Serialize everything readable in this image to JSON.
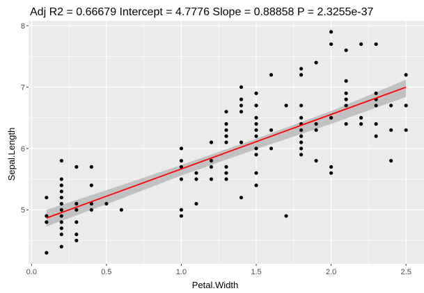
{
  "chart_data": {
    "type": "scatter",
    "title": "Adj R2 =  0.66679 Intercept = 4.7776  Slope = 0.88858  P = 2.3255e-37",
    "xlabel": "Petal.Width",
    "ylabel": "Sepal.Length",
    "xlim": [
      -0.02,
      2.62
    ],
    "ylim": [
      4.12,
      8.08
    ],
    "x_ticks": [
      0.0,
      0.5,
      1.0,
      1.5,
      2.0,
      2.5
    ],
    "x_tick_labels": [
      "0.0",
      "0.5",
      "1.0",
      "1.5",
      "2.0",
      "2.5"
    ],
    "y_ticks": [
      5,
      6,
      7,
      8
    ],
    "y_tick_labels": [
      "5",
      "6",
      "7",
      "8"
    ],
    "grid": true,
    "background_color": "#ebebeb",
    "point_color": "#000000",
    "fit": {
      "method": "linear",
      "intercept": 4.7776,
      "slope": 0.88858,
      "line_color": "#ff0000",
      "band_color": "#b3b3b3",
      "band": [
        {
          "x": 0.1,
          "lower": 4.73,
          "upper": 5.0
        },
        {
          "x": 0.5,
          "lower": 5.09,
          "upper": 5.32
        },
        {
          "x": 1.0,
          "lower": 5.56,
          "upper": 5.73
        },
        {
          "x": 1.5,
          "lower": 5.99,
          "upper": 6.16
        },
        {
          "x": 2.0,
          "lower": 6.4,
          "upper": 6.61
        },
        {
          "x": 2.5,
          "lower": 6.84,
          "upper": 7.12
        }
      ]
    },
    "points": [
      {
        "x": 0.1,
        "y": 4.3
      },
      {
        "x": 0.1,
        "y": 4.8
      },
      {
        "x": 0.1,
        "y": 4.9
      },
      {
        "x": 0.1,
        "y": 5.2
      },
      {
        "x": 0.2,
        "y": 4.4
      },
      {
        "x": 0.2,
        "y": 4.6
      },
      {
        "x": 0.2,
        "y": 4.7
      },
      {
        "x": 0.2,
        "y": 4.8
      },
      {
        "x": 0.2,
        "y": 4.9
      },
      {
        "x": 0.2,
        "y": 5.0
      },
      {
        "x": 0.2,
        "y": 5.1
      },
      {
        "x": 0.2,
        "y": 5.2
      },
      {
        "x": 0.2,
        "y": 5.3
      },
      {
        "x": 0.2,
        "y": 5.4
      },
      {
        "x": 0.2,
        "y": 5.5
      },
      {
        "x": 0.2,
        "y": 5.8
      },
      {
        "x": 0.3,
        "y": 4.5
      },
      {
        "x": 0.3,
        "y": 4.6
      },
      {
        "x": 0.3,
        "y": 4.8
      },
      {
        "x": 0.3,
        "y": 5.0
      },
      {
        "x": 0.3,
        "y": 5.1
      },
      {
        "x": 0.3,
        "y": 5.7
      },
      {
        "x": 0.4,
        "y": 5.0
      },
      {
        "x": 0.4,
        "y": 5.1
      },
      {
        "x": 0.4,
        "y": 5.4
      },
      {
        "x": 0.4,
        "y": 5.7
      },
      {
        "x": 0.5,
        "y": 5.1
      },
      {
        "x": 0.6,
        "y": 5.0
      },
      {
        "x": 1.0,
        "y": 4.9
      },
      {
        "x": 1.0,
        "y": 5.0
      },
      {
        "x": 1.0,
        "y": 5.5
      },
      {
        "x": 1.0,
        "y": 5.7
      },
      {
        "x": 1.0,
        "y": 5.8
      },
      {
        "x": 1.0,
        "y": 6.0
      },
      {
        "x": 1.1,
        "y": 5.1
      },
      {
        "x": 1.1,
        "y": 5.5
      },
      {
        "x": 1.1,
        "y": 5.6
      },
      {
        "x": 1.2,
        "y": 5.5
      },
      {
        "x": 1.2,
        "y": 5.7
      },
      {
        "x": 1.2,
        "y": 5.8
      },
      {
        "x": 1.2,
        "y": 6.1
      },
      {
        "x": 1.3,
        "y": 5.5
      },
      {
        "x": 1.3,
        "y": 5.6
      },
      {
        "x": 1.3,
        "y": 5.7
      },
      {
        "x": 1.3,
        "y": 6.1
      },
      {
        "x": 1.3,
        "y": 6.2
      },
      {
        "x": 1.3,
        "y": 6.3
      },
      {
        "x": 1.3,
        "y": 6.4
      },
      {
        "x": 1.3,
        "y": 6.6
      },
      {
        "x": 1.4,
        "y": 5.2
      },
      {
        "x": 1.4,
        "y": 6.1
      },
      {
        "x": 1.4,
        "y": 6.6
      },
      {
        "x": 1.4,
        "y": 6.7
      },
      {
        "x": 1.4,
        "y": 6.8
      },
      {
        "x": 1.4,
        "y": 7.0
      },
      {
        "x": 1.5,
        "y": 5.4
      },
      {
        "x": 1.5,
        "y": 5.6
      },
      {
        "x": 1.5,
        "y": 5.9
      },
      {
        "x": 1.5,
        "y": 6.0
      },
      {
        "x": 1.5,
        "y": 6.2
      },
      {
        "x": 1.5,
        "y": 6.3
      },
      {
        "x": 1.5,
        "y": 6.4
      },
      {
        "x": 1.5,
        "y": 6.5
      },
      {
        "x": 1.5,
        "y": 6.7
      },
      {
        "x": 1.5,
        "y": 6.9
      },
      {
        "x": 1.6,
        "y": 6.0
      },
      {
        "x": 1.6,
        "y": 6.3
      },
      {
        "x": 1.6,
        "y": 7.2
      },
      {
        "x": 1.7,
        "y": 4.9
      },
      {
        "x": 1.7,
        "y": 6.7
      },
      {
        "x": 1.8,
        "y": 5.9
      },
      {
        "x": 1.8,
        "y": 6.0
      },
      {
        "x": 1.8,
        "y": 6.1
      },
      {
        "x": 1.8,
        "y": 6.2
      },
      {
        "x": 1.8,
        "y": 6.3
      },
      {
        "x": 1.8,
        "y": 6.4
      },
      {
        "x": 1.8,
        "y": 6.5
      },
      {
        "x": 1.8,
        "y": 6.7
      },
      {
        "x": 1.8,
        "y": 7.2
      },
      {
        "x": 1.8,
        "y": 7.3
      },
      {
        "x": 1.9,
        "y": 5.8
      },
      {
        "x": 1.9,
        "y": 6.3
      },
      {
        "x": 1.9,
        "y": 6.4
      },
      {
        "x": 1.9,
        "y": 7.4
      },
      {
        "x": 2.0,
        "y": 5.6
      },
      {
        "x": 2.0,
        "y": 5.7
      },
      {
        "x": 2.0,
        "y": 6.5
      },
      {
        "x": 2.0,
        "y": 7.7
      },
      {
        "x": 2.0,
        "y": 7.9
      },
      {
        "x": 2.1,
        "y": 6.4
      },
      {
        "x": 2.1,
        "y": 6.7
      },
      {
        "x": 2.1,
        "y": 6.8
      },
      {
        "x": 2.1,
        "y": 6.9
      },
      {
        "x": 2.1,
        "y": 7.1
      },
      {
        "x": 2.1,
        "y": 7.6
      },
      {
        "x": 2.2,
        "y": 6.4
      },
      {
        "x": 2.2,
        "y": 6.5
      },
      {
        "x": 2.2,
        "y": 7.7
      },
      {
        "x": 2.3,
        "y": 6.2
      },
      {
        "x": 2.3,
        "y": 6.4
      },
      {
        "x": 2.3,
        "y": 6.7
      },
      {
        "x": 2.3,
        "y": 6.8
      },
      {
        "x": 2.3,
        "y": 6.9
      },
      {
        "x": 2.3,
        "y": 7.7
      },
      {
        "x": 2.4,
        "y": 5.8
      },
      {
        "x": 2.4,
        "y": 6.3
      },
      {
        "x": 2.4,
        "y": 6.7
      },
      {
        "x": 2.5,
        "y": 6.3
      },
      {
        "x": 2.5,
        "y": 6.7
      },
      {
        "x": 2.5,
        "y": 7.2
      }
    ]
  }
}
